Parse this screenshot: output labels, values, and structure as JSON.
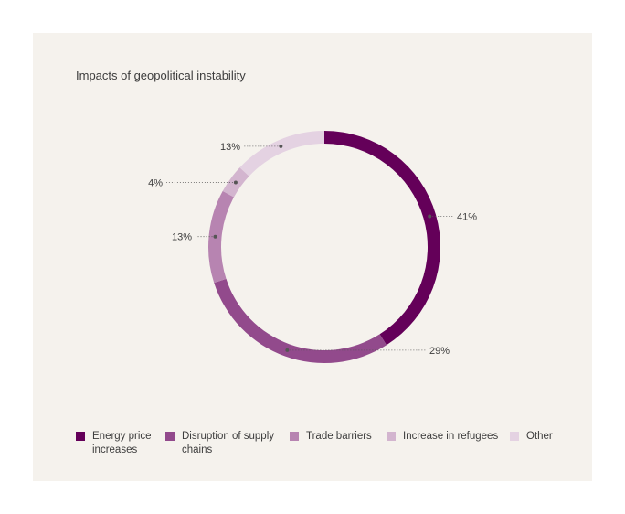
{
  "chart_data": {
    "type": "pie",
    "donut": true,
    "title": "Impacts of geopolitical instability",
    "categories": [
      "Energy price increases",
      "Disruption of supply chains",
      "Trade barriers",
      "Increase in refugees",
      "Other"
    ],
    "values": [
      41,
      29,
      13,
      4,
      13
    ],
    "data_labels": [
      "41%",
      "29%",
      "13%",
      "4%",
      "13%"
    ],
    "colors": [
      "#640059",
      "#924a8c",
      "#b784b1",
      "#d3b5cf",
      "#e4d2e2"
    ],
    "legend_position": "bottom"
  },
  "legend": {
    "items": [
      {
        "label": "Energy price\nincreases",
        "color": "#640059"
      },
      {
        "label": "Disruption of supply\nchains",
        "color": "#924a8c"
      },
      {
        "label": "Trade barriers",
        "color": "#b784b1"
      },
      {
        "label": "Increase in refugees",
        "color": "#d3b5cf"
      },
      {
        "label": "Other",
        "color": "#e4d2e2"
      }
    ]
  }
}
